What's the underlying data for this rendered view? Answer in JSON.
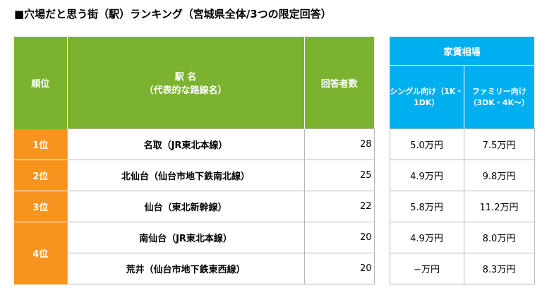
{
  "title": "■穴場だと思う街（駅）ランキング（宮城県全体/3つの限定回答）",
  "header": {
    "rank": "順位",
    "station_line1": "駅 名",
    "station_line2": "（代表的な路線名）",
    "answers": "回答者数",
    "rent_group": "家賃相場",
    "single_line1": "シングル向け（1K・",
    "single_line2": "1DK）",
    "family_line1": "ファミリー向け",
    "family_line2": "（3DK・4K～）"
  },
  "rows": [
    {
      "rank": "1位",
      "station": "名取（JR東北本線）",
      "answers": "28",
      "single": "5.0万円",
      "family": "7.5万円"
    },
    {
      "rank": "2位",
      "station": "北仙台（仙台市地下鉄南北線）",
      "answers": "25",
      "single": "4.9万円",
      "family": "9.8万円"
    },
    {
      "rank": "3位",
      "station": "仙台（東北新幹線）",
      "answers": "22",
      "single": "5.8万円",
      "family": "11.2万円"
    },
    {
      "rank": "4位",
      "station": "南仙台（JR東北本線）",
      "answers": "20",
      "single": "4.9万円",
      "family": "8.0万円"
    },
    {
      "rank": "",
      "station": "荒井（仙台市地下鉄東西線）",
      "answers": "20",
      "single": "−万円",
      "family": "8.3万円"
    }
  ]
}
